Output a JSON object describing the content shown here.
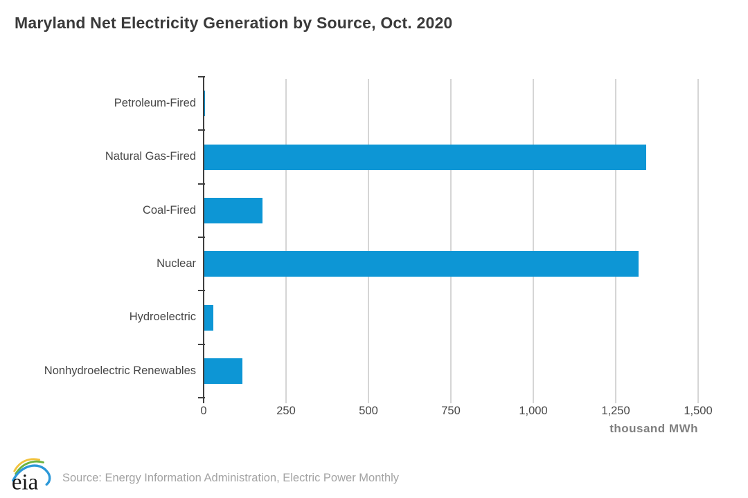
{
  "title": "Maryland Net Electricity Generation by Source, Oct. 2020",
  "chart_data": {
    "type": "bar",
    "orientation": "horizontal",
    "title": "Maryland Net Electricity Generation by Source, Oct. 2020",
    "categories": [
      "Petroleum-Fired",
      "Natural Gas-Fired",
      "Coal-Fired",
      "Nuclear",
      "Hydroelectric",
      "Nonhydroelectric Renewables"
    ],
    "values": [
      2,
      1340,
      176,
      1317,
      27,
      115
    ],
    "xlabel": "thousand MWh",
    "ylabel": "",
    "xlim": [
      0,
      1500
    ],
    "xtick_values": [
      0,
      250,
      500,
      750,
      1000,
      1250,
      1500
    ],
    "xtick_labels": [
      "0",
      "250",
      "500",
      "750",
      "1,000",
      "1,250",
      "1,500"
    ],
    "grid": true,
    "legend": false,
    "bar_color": "#0d96d5",
    "gridline_color": "#d5d5d5",
    "axis_color": "#3f3f3f"
  },
  "footer": {
    "logo_text": "eia",
    "source": "Source: Energy Information Administration, Electric Power Monthly"
  }
}
